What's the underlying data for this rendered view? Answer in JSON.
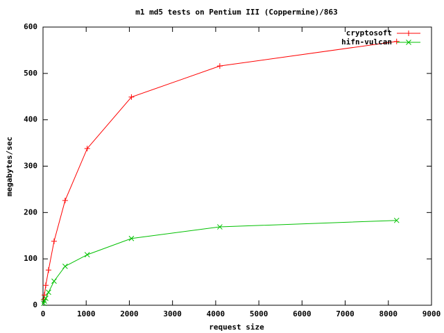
{
  "chart_data": {
    "type": "line",
    "title": "m1 md5 tests on Pentium III (Coppermine)/863",
    "x_label": "request size",
    "y_label": "megabytes/sec",
    "x": [
      16,
      32,
      64,
      128,
      256,
      512,
      1024,
      2048,
      4096,
      8192
    ],
    "series": [
      {
        "name": "cryptosoft",
        "color": "#ff0000",
        "marker": "+",
        "values": [
          12,
          22,
          43,
          76,
          138,
          226,
          338,
          449,
          516,
          569
        ]
      },
      {
        "name": "hifn-vulcan",
        "color": "#00c000",
        "marker": "x",
        "values": [
          4,
          9,
          15,
          28,
          52,
          84,
          109,
          144,
          169,
          183
        ]
      }
    ],
    "xlim": [
      0,
      9000
    ],
    "xticks": [
      0,
      1000,
      2000,
      3000,
      4000,
      5000,
      6000,
      7000,
      8000,
      9000
    ],
    "ylim": [
      0,
      600
    ],
    "yticks": [
      0,
      100,
      200,
      300,
      400,
      500,
      600
    ],
    "legend": "top right"
  }
}
